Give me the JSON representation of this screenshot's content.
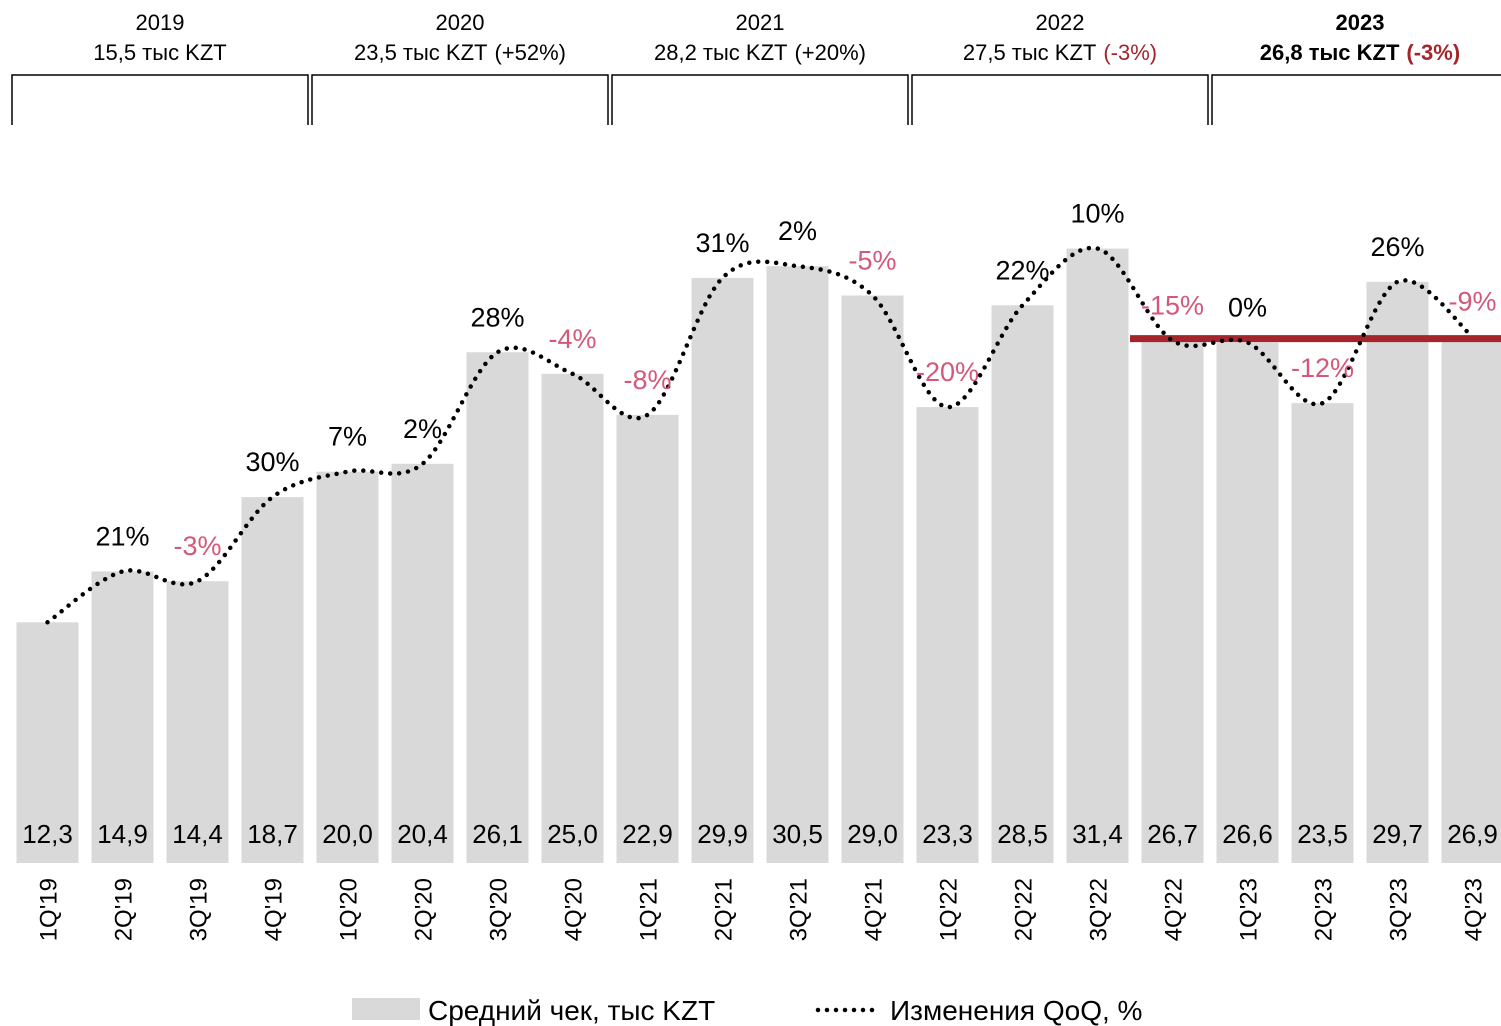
{
  "chart_data": {
    "type": "bar",
    "categories": [
      "1Q'19",
      "2Q'19",
      "3Q'19",
      "4Q'19",
      "1Q'20",
      "2Q'20",
      "3Q'20",
      "4Q'20",
      "1Q'21",
      "2Q'21",
      "3Q'21",
      "4Q'21",
      "1Q'22",
      "2Q'22",
      "3Q'22",
      "4Q'22",
      "1Q'23",
      "2Q'23",
      "3Q'23",
      "4Q'23"
    ],
    "series": [
      {
        "name": "Средний чек, тыс KZT",
        "color": "#d9d9d9",
        "values": [
          12.3,
          14.9,
          14.4,
          18.7,
          20.0,
          20.4,
          26.1,
          25.0,
          22.9,
          29.9,
          30.5,
          29.0,
          23.3,
          28.5,
          31.4,
          26.7,
          26.6,
          23.5,
          29.7,
          26.9
        ],
        "value_labels": [
          "12,3",
          "14,9",
          "14,4",
          "18,7",
          "20,0",
          "20,4",
          "26,1",
          "25,0",
          "22,9",
          "29,9",
          "30,5",
          "29,0",
          "23,3",
          "28,5",
          "31,4",
          "26,7",
          "26,6",
          "23,5",
          "29,7",
          "26,9"
        ]
      },
      {
        "name": "Изменения QoQ, %",
        "color": "#000000",
        "negative_color": "#d4587a",
        "values": [
          null,
          21,
          -3,
          30,
          7,
          2,
          28,
          -4,
          -8,
          31,
          2,
          -5,
          -20,
          22,
          10,
          -15,
          0,
          -12,
          26,
          -9
        ],
        "value_labels": [
          null,
          "21%",
          "-3%",
          "30%",
          "7%",
          "2%",
          "28%",
          "-4%",
          "-8%",
          "31%",
          "2%",
          "-5%",
          "-20%",
          "22%",
          "10%",
          "-15%",
          "0%",
          "-12%",
          "26%",
          "-9%"
        ]
      }
    ],
    "ylim": [
      0,
      44
    ],
    "reference_line": {
      "value": 26.8,
      "from": "4Q'22",
      "color": "#a4262c"
    },
    "year_groups": [
      {
        "year": "2019",
        "summary": "15,5 тыс KZT"
      },
      {
        "year": "2020",
        "summary": "23,5 тыс KZT",
        "change": "(+52%)"
      },
      {
        "year": "2021",
        "summary": "28,2 тыс KZT",
        "change": "(+20%)"
      },
      {
        "year": "2022",
        "summary": "27,5 тыс KZT",
        "change": "(-3%)",
        "change_color": "#a4262c"
      },
      {
        "year": "2023",
        "summary": "26,8 тыс KZT",
        "change": "(-3%)",
        "change_color": "#a4262c",
        "bold": true
      }
    ]
  }
}
